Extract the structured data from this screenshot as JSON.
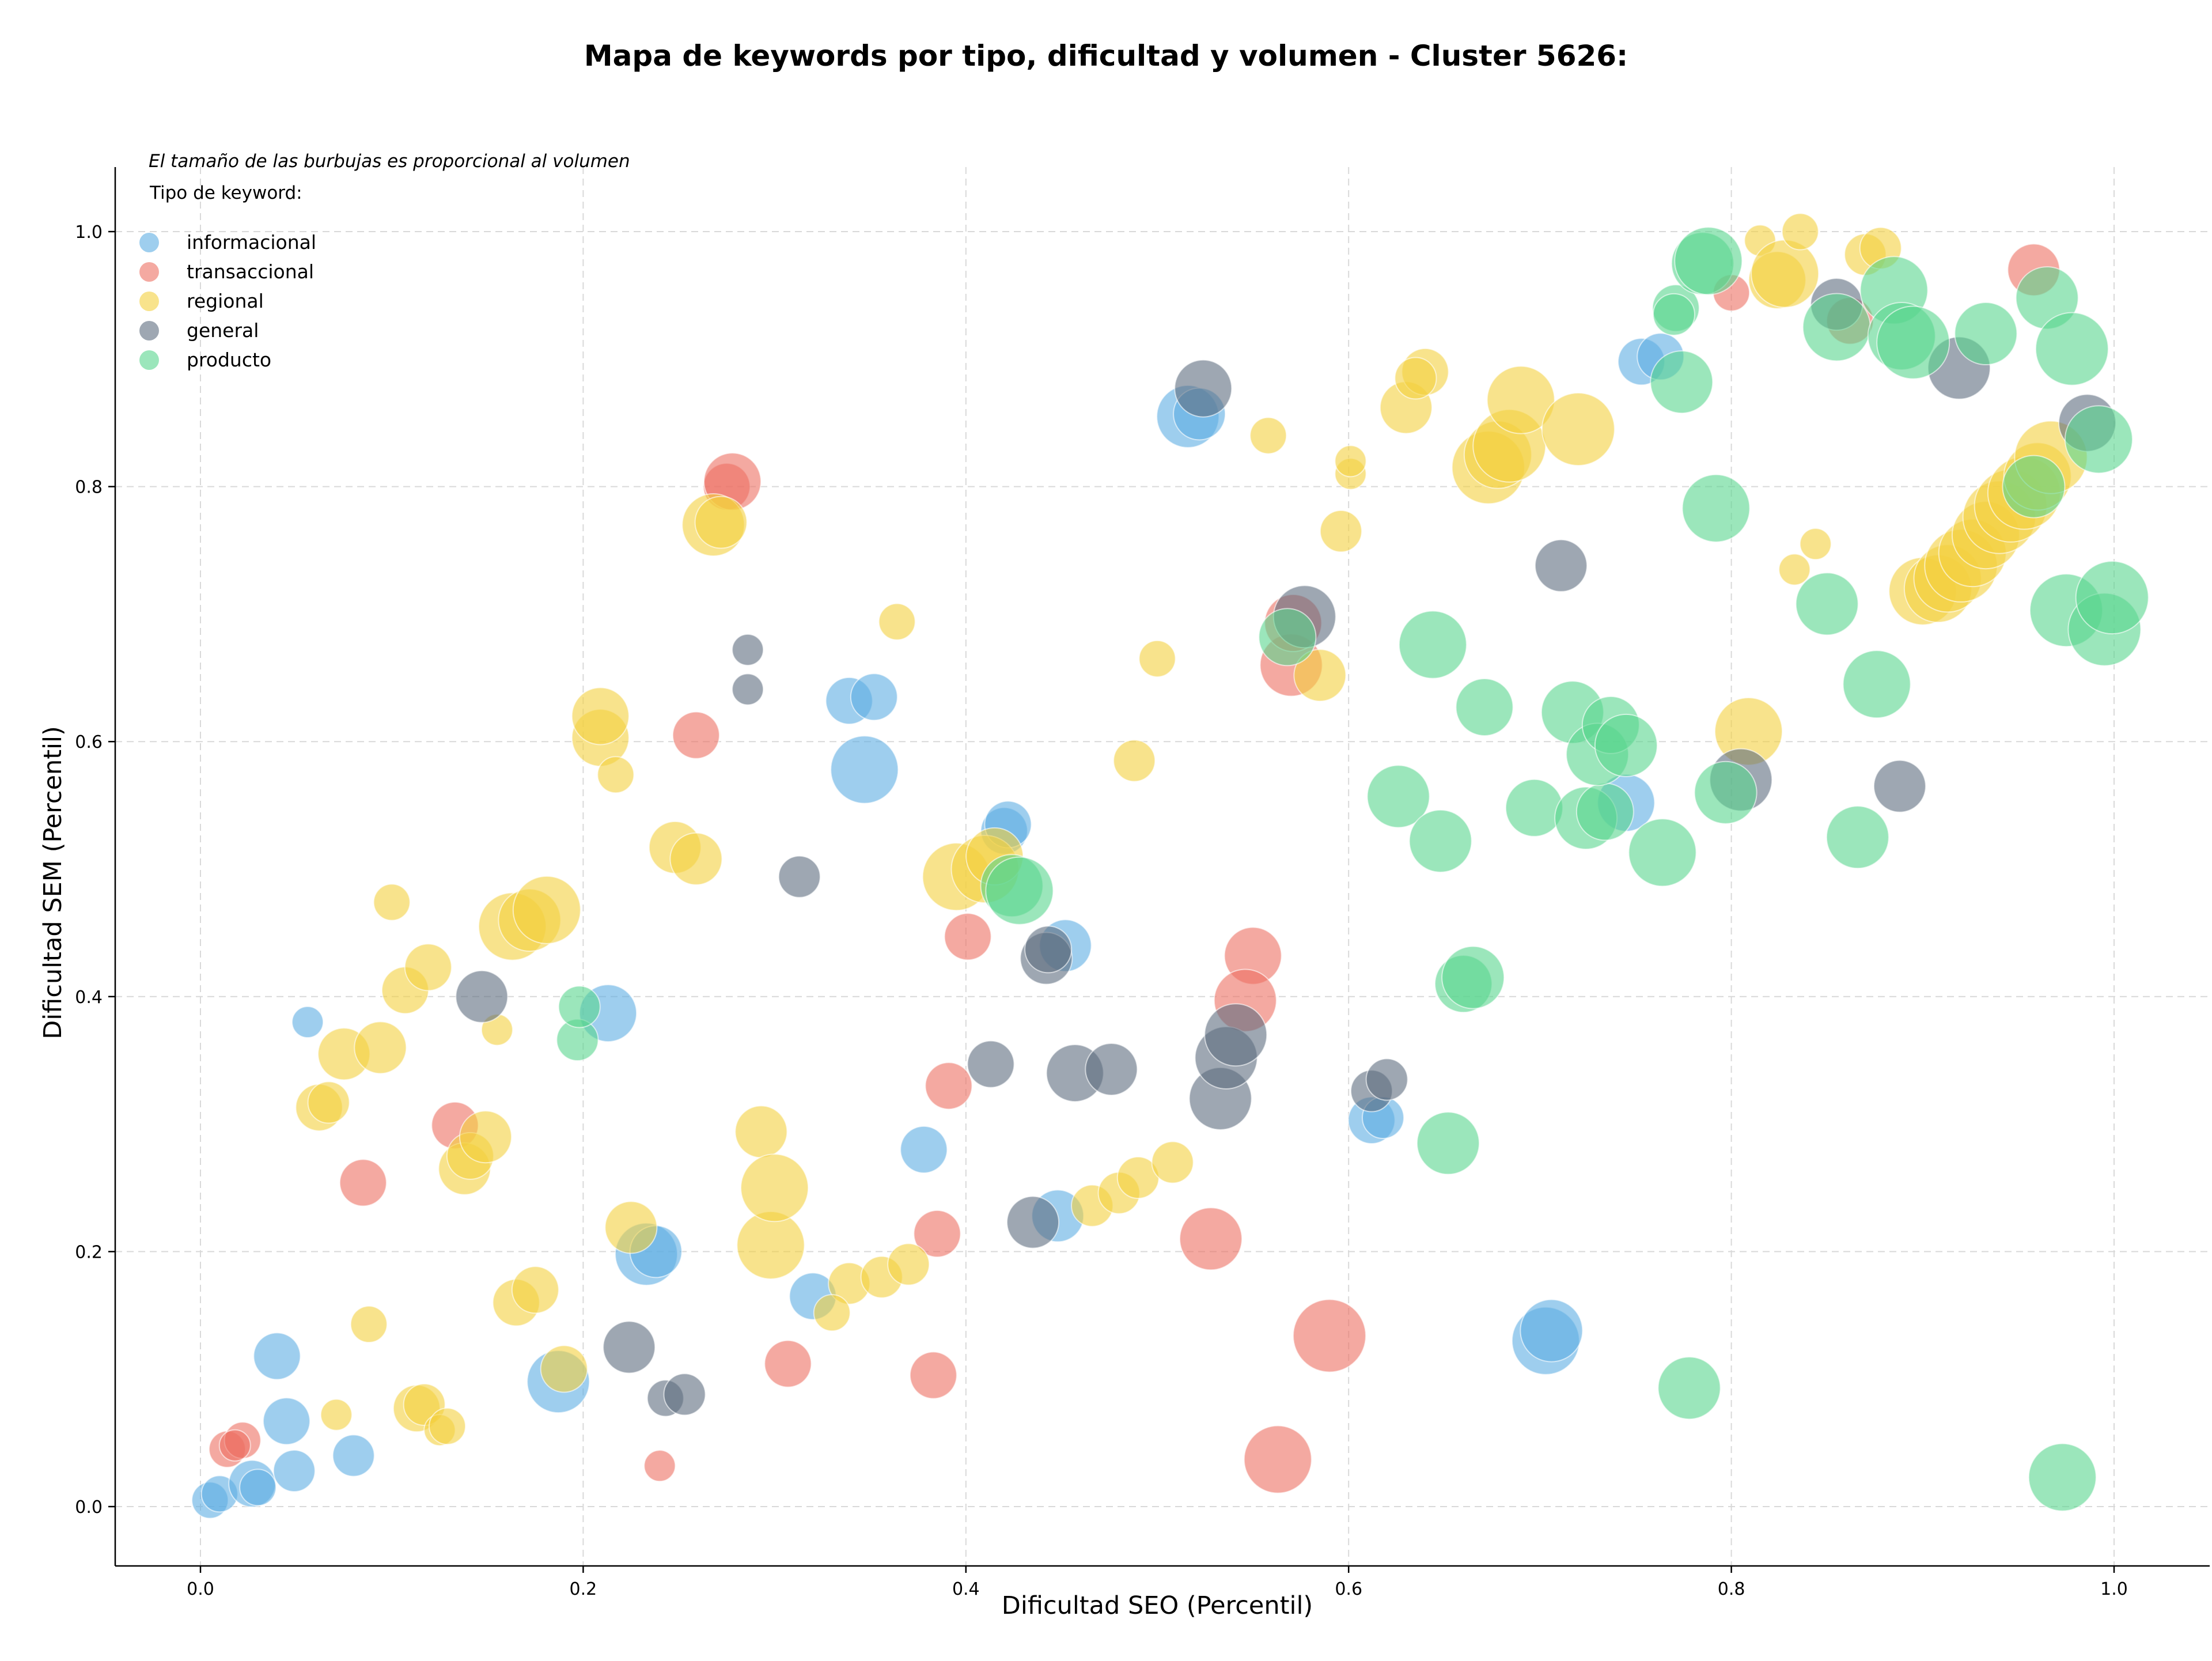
{
  "chart_data": {
    "type": "scatter",
    "title": "Mapa de keywords por tipo, dificultad y volumen - Cluster 5626:",
    "xlabel": "Dificultad SEO (Percentil)",
    "ylabel": "Dificultad SEM (Percentil)",
    "xlim": [
      -0.045,
      1.05
    ],
    "ylim": [
      -0.045,
      1.05
    ],
    "x_ticks": [
      "0.0",
      "0.2",
      "0.4",
      "0.6",
      "0.8",
      "1.0"
    ],
    "y_ticks": [
      "0.0",
      "0.2",
      "0.4",
      "0.6",
      "0.8",
      "1.0"
    ],
    "grid": true,
    "legend_position": "top-left",
    "size_note": "El tamaño de las burbujas es proporcional al volumen",
    "legend_title": "Tipo de keyword:",
    "series": [
      {
        "name": "informacional",
        "color": "#5DADE2",
        "points": [
          [
            0.005,
            0.005,
            0.3
          ],
          [
            0.01,
            0.01,
            0.3
          ],
          [
            0.027,
            0.018,
            0.5
          ],
          [
            0.03,
            0.015,
            0.3
          ],
          [
            0.045,
            0.067,
            0.5
          ],
          [
            0.049,
            0.028,
            0.4
          ],
          [
            0.04,
            0.118,
            0.5
          ],
          [
            0.08,
            0.04,
            0.4
          ],
          [
            0.056,
            0.38,
            0.2
          ],
          [
            0.187,
            0.098,
            0.8
          ],
          [
            0.213,
            0.387,
            0.7
          ],
          [
            0.233,
            0.198,
            0.8
          ],
          [
            0.238,
            0.2,
            0.6
          ],
          [
            0.32,
            0.165,
            0.5
          ],
          [
            0.339,
            0.632,
            0.5
          ],
          [
            0.352,
            0.635,
            0.5
          ],
          [
            0.347,
            0.578,
            0.9
          ],
          [
            0.378,
            0.28,
            0.5
          ],
          [
            0.42,
            0.53,
            0.5
          ],
          [
            0.422,
            0.535,
            0.5
          ],
          [
            0.448,
            0.228,
            0.6
          ],
          [
            0.452,
            0.44,
            0.6
          ],
          [
            0.516,
            0.855,
            0.8
          ],
          [
            0.522,
            0.857,
            0.6
          ],
          [
            0.612,
            0.303,
            0.5
          ],
          [
            0.618,
            0.305,
            0.4
          ],
          [
            0.703,
            0.13,
            0.9
          ],
          [
            0.706,
            0.138,
            0.8
          ],
          [
            0.745,
            0.552,
            0.7
          ],
          [
            0.753,
            0.898,
            0.5
          ],
          [
            0.763,
            0.902,
            0.5
          ]
        ]
      },
      {
        "name": "transaccional",
        "color": "#EC7063",
        "points": [
          [
            0.014,
            0.045,
            0.3
          ],
          [
            0.022,
            0.052,
            0.3
          ],
          [
            0.018,
            0.048,
            0.2
          ],
          [
            0.085,
            0.254,
            0.5
          ],
          [
            0.133,
            0.299,
            0.5
          ],
          [
            0.24,
            0.032,
            0.2
          ],
          [
            0.259,
            0.605,
            0.5
          ],
          [
            0.275,
            0.8,
            0.5
          ],
          [
            0.278,
            0.804,
            0.7
          ],
          [
            0.307,
            0.112,
            0.5
          ],
          [
            0.383,
            0.103,
            0.5
          ],
          [
            0.385,
            0.214,
            0.5
          ],
          [
            0.391,
            0.33,
            0.5
          ],
          [
            0.401,
            0.447,
            0.5
          ],
          [
            0.528,
            0.21,
            0.8
          ],
          [
            0.55,
            0.432,
            0.7
          ],
          [
            0.546,
            0.397,
            0.8
          ],
          [
            0.563,
            0.037,
            0.9
          ],
          [
            0.57,
            0.66,
            0.8
          ],
          [
            0.571,
            0.693,
            0.7
          ],
          [
            0.59,
            0.134,
            1.0
          ],
          [
            0.8,
            0.952,
            0.3
          ],
          [
            0.958,
            0.97,
            0.6
          ],
          [
            0.862,
            0.93,
            0.5
          ]
        ]
      },
      {
        "name": "regional",
        "color": "#F4D03F",
        "points": [
          [
            0.062,
            0.313,
            0.5
          ],
          [
            0.067,
            0.317,
            0.4
          ],
          [
            0.071,
            0.072,
            0.2
          ],
          [
            0.075,
            0.355,
            0.6
          ],
          [
            0.088,
            0.143,
            0.3
          ],
          [
            0.094,
            0.36,
            0.6
          ],
          [
            0.1,
            0.474,
            0.3
          ],
          [
            0.107,
            0.405,
            0.5
          ],
          [
            0.113,
            0.077,
            0.5
          ],
          [
            0.117,
            0.08,
            0.4
          ],
          [
            0.119,
            0.423,
            0.5
          ],
          [
            0.125,
            0.06,
            0.2
          ],
          [
            0.129,
            0.063,
            0.3
          ],
          [
            0.138,
            0.265,
            0.6
          ],
          [
            0.141,
            0.275,
            0.5
          ],
          [
            0.149,
            0.29,
            0.6
          ],
          [
            0.155,
            0.374,
            0.2
          ],
          [
            0.163,
            0.455,
            0.9
          ],
          [
            0.165,
            0.16,
            0.5
          ],
          [
            0.172,
            0.46,
            0.8
          ],
          [
            0.175,
            0.17,
            0.5
          ],
          [
            0.181,
            0.468,
            0.9
          ],
          [
            0.19,
            0.108,
            0.5
          ],
          [
            0.209,
            0.603,
            0.7
          ],
          [
            0.209,
            0.62,
            0.7
          ],
          [
            0.217,
            0.574,
            0.3
          ],
          [
            0.225,
            0.219,
            0.6
          ],
          [
            0.248,
            0.517,
            0.6
          ],
          [
            0.259,
            0.508,
            0.6
          ],
          [
            0.268,
            0.77,
            0.8
          ],
          [
            0.272,
            0.772,
            0.6
          ],
          [
            0.293,
            0.294,
            0.6
          ],
          [
            0.298,
            0.205,
            0.9
          ],
          [
            0.3,
            0.25,
            0.9
          ],
          [
            0.339,
            0.175,
            0.4
          ],
          [
            0.33,
            0.152,
            0.3
          ],
          [
            0.356,
            0.18,
            0.4
          ],
          [
            0.364,
            0.694,
            0.3
          ],
          [
            0.37,
            0.19,
            0.4
          ],
          [
            0.395,
            0.494,
            0.9
          ],
          [
            0.41,
            0.5,
            0.9
          ],
          [
            0.415,
            0.51,
            0.7
          ],
          [
            0.466,
            0.236,
            0.4
          ],
          [
            0.48,
            0.246,
            0.4
          ],
          [
            0.49,
            0.258,
            0.4
          ],
          [
            0.488,
            0.585,
            0.4
          ],
          [
            0.5,
            0.665,
            0.3
          ],
          [
            0.508,
            0.27,
            0.4
          ],
          [
            0.558,
            0.84,
            0.3
          ],
          [
            0.585,
            0.652,
            0.6
          ],
          [
            0.596,
            0.765,
            0.4
          ],
          [
            0.601,
            0.81,
            0.2
          ],
          [
            0.601,
            0.82,
            0.2
          ],
          [
            0.63,
            0.862,
            0.6
          ],
          [
            0.64,
            0.89,
            0.5
          ],
          [
            0.635,
            0.885,
            0.4
          ],
          [
            0.673,
            0.815,
            1.0
          ],
          [
            0.678,
            0.825,
            0.9
          ],
          [
            0.684,
            0.832,
            1.0
          ],
          [
            0.69,
            0.868,
            0.9
          ],
          [
            0.72,
            0.845,
            1.0
          ],
          [
            0.809,
            0.608,
            0.9
          ],
          [
            0.815,
            0.993,
            0.2
          ],
          [
            0.824,
            0.962,
            0.7
          ],
          [
            0.828,
            0.967,
            0.9
          ],
          [
            0.833,
            0.735,
            0.2
          ],
          [
            0.836,
            1.0,
            0.3
          ],
          [
            0.844,
            0.755,
            0.2
          ],
          [
            0.87,
            0.982,
            0.4
          ],
          [
            0.878,
            0.987,
            0.4
          ],
          [
            0.9,
            0.718,
            0.9
          ],
          [
            0.908,
            0.72,
            0.9
          ],
          [
            0.913,
            0.728,
            0.9
          ],
          [
            0.92,
            0.738,
            1.0
          ],
          [
            0.926,
            0.748,
            0.9
          ],
          [
            0.933,
            0.762,
            0.9
          ],
          [
            0.94,
            0.776,
            1.0
          ],
          [
            0.946,
            0.785,
            1.0
          ],
          [
            0.953,
            0.795,
            1.0
          ],
          [
            0.96,
            0.808,
            0.9
          ],
          [
            0.967,
            0.823,
            1.0
          ]
        ]
      },
      {
        "name": "general",
        "color": "#5D6D7E",
        "points": [
          [
            0.147,
            0.4,
            0.6
          ],
          [
            0.224,
            0.125,
            0.6
          ],
          [
            0.243,
            0.085,
            0.3
          ],
          [
            0.253,
            0.088,
            0.4
          ],
          [
            0.286,
            0.672,
            0.2
          ],
          [
            0.286,
            0.641,
            0.2
          ],
          [
            0.313,
            0.494,
            0.4
          ],
          [
            0.413,
            0.347,
            0.5
          ],
          [
            0.435,
            0.223,
            0.6
          ],
          [
            0.442,
            0.43,
            0.6
          ],
          [
            0.443,
            0.437,
            0.5
          ],
          [
            0.457,
            0.34,
            0.7
          ],
          [
            0.476,
            0.343,
            0.6
          ],
          [
            0.533,
            0.32,
            0.8
          ],
          [
            0.536,
            0.352,
            0.8
          ],
          [
            0.541,
            0.37,
            0.8
          ],
          [
            0.524,
            0.877,
            0.7
          ],
          [
            0.577,
            0.698,
            0.8
          ],
          [
            0.612,
            0.326,
            0.4
          ],
          [
            0.62,
            0.335,
            0.4
          ],
          [
            0.711,
            0.738,
            0.6
          ],
          [
            0.805,
            0.57,
            0.8
          ],
          [
            0.855,
            0.943,
            0.6
          ],
          [
            0.888,
            0.565,
            0.6
          ],
          [
            0.919,
            0.893,
            0.8
          ],
          [
            0.986,
            0.85,
            0.7
          ]
        ]
      },
      {
        "name": "producto",
        "color": "#58D68D",
        "points": [
          [
            0.197,
            0.366,
            0.4
          ],
          [
            0.198,
            0.392,
            0.4
          ],
          [
            0.424,
            0.487,
            0.8
          ],
          [
            0.428,
            0.483,
            0.9
          ],
          [
            0.568,
            0.682,
            0.7
          ],
          [
            0.626,
            0.557,
            0.8
          ],
          [
            0.644,
            0.676,
            0.9
          ],
          [
            0.648,
            0.522,
            0.8
          ],
          [
            0.652,
            0.285,
            0.8
          ],
          [
            0.66,
            0.41,
            0.7
          ],
          [
            0.665,
            0.415,
            0.8
          ],
          [
            0.671,
            0.627,
            0.7
          ],
          [
            0.697,
            0.548,
            0.7
          ],
          [
            0.717,
            0.623,
            0.8
          ],
          [
            0.724,
            0.54,
            0.8
          ],
          [
            0.734,
            0.545,
            0.7
          ],
          [
            0.73,
            0.59,
            0.8
          ],
          [
            0.737,
            0.613,
            0.7
          ],
          [
            0.745,
            0.597,
            0.8
          ],
          [
            0.764,
            0.513,
            0.9
          ],
          [
            0.771,
            0.94,
            0.5
          ],
          [
            0.77,
            0.935,
            0.4
          ],
          [
            0.774,
            0.882,
            0.8
          ],
          [
            0.778,
            0.093,
            0.8
          ],
          [
            0.785,
            0.975,
            0.8
          ],
          [
            0.788,
            0.977,
            0.9
          ],
          [
            0.792,
            0.783,
            0.9
          ],
          [
            0.797,
            0.56,
            0.8
          ],
          [
            0.85,
            0.708,
            0.8
          ],
          [
            0.855,
            0.925,
            0.9
          ],
          [
            0.866,
            0.525,
            0.8
          ],
          [
            0.876,
            0.645,
            0.9
          ],
          [
            0.885,
            0.954,
            0.9
          ],
          [
            0.889,
            0.918,
            0.9
          ],
          [
            0.895,
            0.913,
            1.0
          ],
          [
            0.933,
            0.92,
            0.8
          ],
          [
            0.958,
            0.8,
            0.8
          ],
          [
            0.965,
            0.948,
            0.8
          ],
          [
            0.973,
            0.023,
            0.9
          ],
          [
            0.975,
            0.703,
            1.0
          ],
          [
            0.978,
            0.908,
            1.0
          ],
          [
            0.992,
            0.837,
            0.9
          ],
          [
            0.995,
            0.688,
            1.0
          ],
          [
            0.999,
            0.713,
            1.0
          ]
        ]
      }
    ]
  }
}
